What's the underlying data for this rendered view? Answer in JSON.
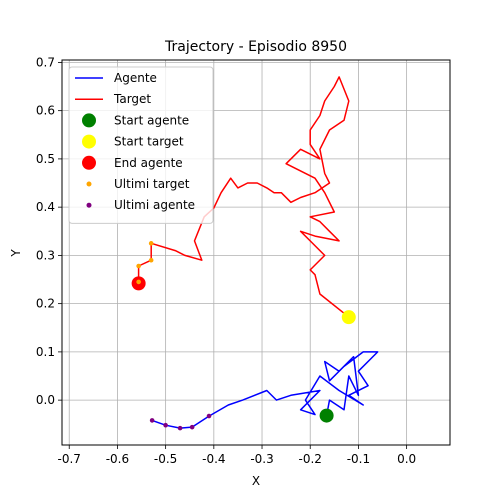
{
  "chart_data": {
    "type": "line",
    "title": "Trajectory - Episodio 8950",
    "xlabel": "X",
    "ylabel": "Y",
    "xlim": [
      -0.715,
      0.09
    ],
    "ylim": [
      -0.093,
      0.705
    ],
    "xticks": [
      -0.7,
      -0.6,
      -0.5,
      -0.4,
      -0.3,
      -0.2,
      -0.1,
      0.0
    ],
    "yticks": [
      0.0,
      0.1,
      0.2,
      0.3,
      0.4,
      0.5,
      0.6,
      0.7
    ],
    "grid": true,
    "legend_position": "upper-left",
    "series": [
      {
        "name": "Agente",
        "kind": "line",
        "color": "#0000ff",
        "points": [
          [
            -0.166,
            -0.032
          ],
          [
            -0.16,
            0.0
          ],
          [
            -0.13,
            -0.02
          ],
          [
            -0.12,
            0.05
          ],
          [
            -0.1,
            0.01
          ],
          [
            -0.11,
            0.09
          ],
          [
            -0.14,
            0.06
          ],
          [
            -0.17,
            0.08
          ],
          [
            -0.16,
            0.04
          ],
          [
            -0.13,
            0.07
          ],
          [
            -0.09,
            0.1
          ],
          [
            -0.06,
            0.1
          ],
          [
            -0.1,
            0.06
          ],
          [
            -0.08,
            0.03
          ],
          [
            -0.12,
            0.01
          ],
          [
            -0.09,
            -0.01
          ],
          [
            -0.14,
            0.02
          ],
          [
            -0.18,
            0.05
          ],
          [
            -0.21,
            0.0
          ],
          [
            -0.19,
            -0.03
          ],
          [
            -0.22,
            -0.02
          ],
          [
            -0.18,
            0.02
          ],
          [
            -0.24,
            0.01
          ],
          [
            -0.27,
            0.0
          ],
          [
            -0.29,
            0.02
          ],
          [
            -0.34,
            0.0
          ],
          [
            -0.37,
            -0.01
          ],
          [
            -0.41,
            -0.033
          ],
          [
            -0.445,
            -0.056
          ],
          [
            -0.47,
            -0.058
          ],
          [
            -0.5,
            -0.052
          ],
          [
            -0.528,
            -0.042
          ]
        ]
      },
      {
        "name": "Target",
        "kind": "line",
        "color": "#ff0000",
        "points": [
          [
            -0.12,
            0.172
          ],
          [
            -0.18,
            0.22
          ],
          [
            -0.19,
            0.26
          ],
          [
            -0.2,
            0.27
          ],
          [
            -0.17,
            0.3
          ],
          [
            -0.2,
            0.33
          ],
          [
            -0.22,
            0.35
          ],
          [
            -0.19,
            0.34
          ],
          [
            -0.14,
            0.33
          ],
          [
            -0.16,
            0.35
          ],
          [
            -0.18,
            0.37
          ],
          [
            -0.2,
            0.38
          ],
          [
            -0.15,
            0.39
          ],
          [
            -0.17,
            0.43
          ],
          [
            -0.19,
            0.46
          ],
          [
            -0.23,
            0.48
          ],
          [
            -0.25,
            0.49
          ],
          [
            -0.22,
            0.52
          ],
          [
            -0.18,
            0.5
          ],
          [
            -0.2,
            0.53
          ],
          [
            -0.2,
            0.56
          ],
          [
            -0.18,
            0.59
          ],
          [
            -0.17,
            0.62
          ],
          [
            -0.15,
            0.65
          ],
          [
            -0.14,
            0.67
          ],
          [
            -0.12,
            0.62
          ],
          [
            -0.13,
            0.58
          ],
          [
            -0.16,
            0.56
          ],
          [
            -0.18,
            0.52
          ],
          [
            -0.17,
            0.47
          ],
          [
            -0.16,
            0.45
          ],
          [
            -0.19,
            0.43
          ],
          [
            -0.22,
            0.42
          ],
          [
            -0.24,
            0.41
          ],
          [
            -0.26,
            0.43
          ],
          [
            -0.275,
            0.43
          ],
          [
            -0.29,
            0.44
          ],
          [
            -0.31,
            0.45
          ],
          [
            -0.33,
            0.45
          ],
          [
            -0.35,
            0.44
          ],
          [
            -0.365,
            0.46
          ],
          [
            -0.385,
            0.43
          ],
          [
            -0.4,
            0.398
          ],
          [
            -0.42,
            0.38
          ],
          [
            -0.44,
            0.33
          ],
          [
            -0.425,
            0.29
          ],
          [
            -0.46,
            0.3
          ],
          [
            -0.48,
            0.31
          ],
          [
            -0.53,
            0.325
          ],
          [
            -0.53,
            0.29
          ],
          [
            -0.556,
            0.278
          ],
          [
            -0.556,
            0.245
          ]
        ]
      }
    ],
    "markers": [
      {
        "name": "Start agente",
        "color": "#008000",
        "size": 7,
        "x": -0.166,
        "y": -0.032
      },
      {
        "name": "Start target",
        "color": "#ffff00",
        "size": 7,
        "x": -0.12,
        "y": 0.172
      },
      {
        "name": "End agente",
        "color": "#ff0000",
        "size": 7,
        "x": -0.556,
        "y": 0.242
      }
    ],
    "scatter": [
      {
        "name": "Ultimi target",
        "color": "#ffa500",
        "size": 2.3,
        "points": [
          [
            -0.53,
            0.325
          ],
          [
            -0.53,
            0.29
          ],
          [
            -0.556,
            0.278
          ],
          [
            -0.556,
            0.245
          ]
        ]
      },
      {
        "name": "Ultimi agente",
        "color": "#800080",
        "size": 2.3,
        "points": [
          [
            -0.41,
            -0.033
          ],
          [
            -0.445,
            -0.056
          ],
          [
            -0.47,
            -0.058
          ],
          [
            -0.5,
            -0.052
          ],
          [
            -0.528,
            -0.042
          ]
        ]
      }
    ],
    "legend": [
      {
        "label": "Agente",
        "kind": "line",
        "color": "#0000ff"
      },
      {
        "label": "Target",
        "kind": "line",
        "color": "#ff0000"
      },
      {
        "label": "Start agente",
        "kind": "marker",
        "color": "#008000",
        "size": 7
      },
      {
        "label": "Start target",
        "kind": "marker",
        "color": "#ffff00",
        "size": 7
      },
      {
        "label": "End agente",
        "kind": "marker",
        "color": "#ff0000",
        "size": 7
      },
      {
        "label": "Ultimi target",
        "kind": "marker",
        "color": "#ffa500",
        "size": 2.5
      },
      {
        "label": "Ultimi agente",
        "kind": "marker",
        "color": "#800080",
        "size": 2.5
      }
    ]
  }
}
